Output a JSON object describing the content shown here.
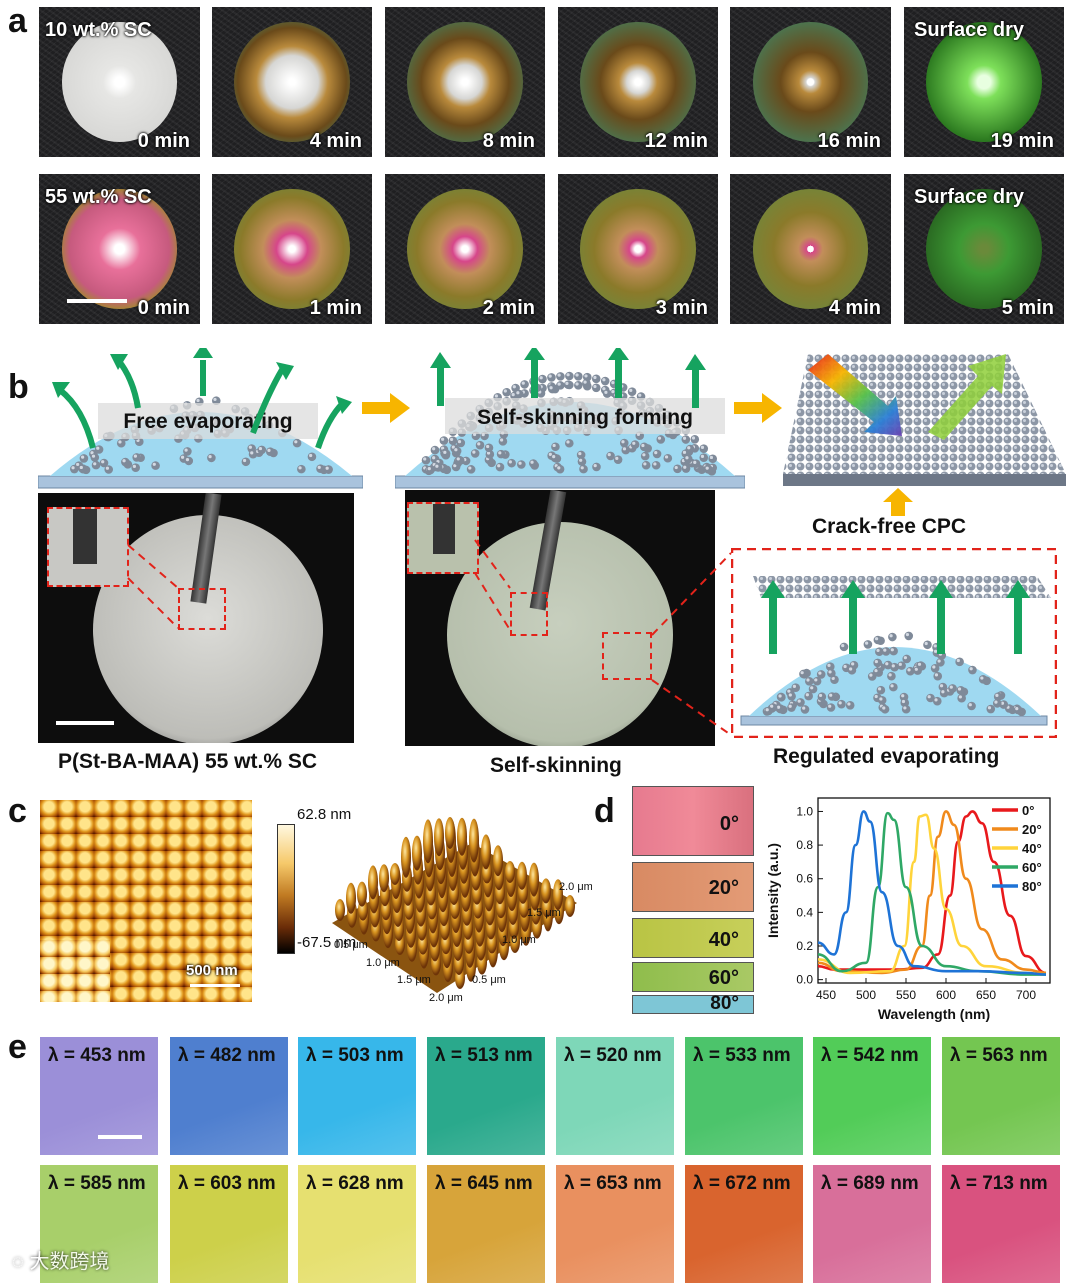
{
  "panels": {
    "a": "a",
    "b": "b",
    "c": "c",
    "d": "d",
    "e": "e"
  },
  "panel_a": {
    "row1_label": "10 wt.% SC",
    "row2_label": "55 wt.% SC",
    "surface_dry": "Surface dry",
    "row1_times": [
      "0 min",
      "4 min",
      "8 min",
      "12 min",
      "16 min",
      "19 min"
    ],
    "row2_times": [
      "0 min",
      "1 min",
      "2 min",
      "3 min",
      "4 min",
      "5 min"
    ]
  },
  "panel_b": {
    "free_evaporating": "Free evaporating",
    "self_skinning_forming": "Self-skinning forming",
    "crack_free_cpc": "Crack-free CPC",
    "caption_left": "P(St-BA-MAA) 55 wt.% SC",
    "caption_mid": "Self-skinning",
    "caption_right": "Regulated evaporating"
  },
  "panel_c": {
    "scale_max": "62.8 nm",
    "scale_min": "-67.5 nm",
    "scalebar": "500 nm",
    "axis_x_ticks": [
      "0.5 μm",
      "1.0 μm",
      "1.5 μm",
      "2.0 μm"
    ],
    "axis_y_ticks": [
      "0.5 μm",
      "1.0 μm",
      "1.5 μm",
      "2.0 μm"
    ]
  },
  "panel_d": {
    "angles": [
      "0°",
      "20°",
      "40°",
      "60°",
      "80°"
    ]
  },
  "panel_e": {
    "row1": [
      "λ = 453 nm",
      "λ = 482 nm",
      "λ = 503 nm",
      "λ = 513 nm",
      "λ = 520 nm",
      "λ = 533 nm",
      "λ = 542 nm",
      "λ = 563 nm"
    ],
    "row2": [
      "λ = 585 nm",
      "λ = 603 nm",
      "λ = 628 nm",
      "λ = 645 nm",
      "λ = 653 nm",
      "λ = 672 nm",
      "λ = 689 nm",
      "λ = 713 nm"
    ],
    "row1_colors": [
      "#9b8fd8",
      "#4f7fcf",
      "#37b7ea",
      "#2aa98c",
      "#7ed7b8",
      "#4cc46b",
      "#52cc58",
      "#74c651"
    ],
    "row2_colors": [
      "#a8cf6a",
      "#cdd04a",
      "#e6e070",
      "#d7a43a",
      "#e9905f",
      "#d9642e",
      "#d86f9a",
      "#d9527f"
    ]
  },
  "watermark": "大数跨境",
  "chart_data": {
    "type": "line",
    "xlabel": "Wavelength (nm)",
    "ylabel": "Intensity (a.u.)",
    "xlim": [
      440,
      730
    ],
    "ylim": [
      -0.02,
      1.08
    ],
    "x_ticks": [
      "450",
      "500",
      "550",
      "600",
      "650",
      "700"
    ],
    "y_ticks": [
      "0.0",
      "0.2",
      "0.4",
      "0.6",
      "0.8",
      "1.0"
    ],
    "legend_position": "top-right",
    "series": [
      {
        "name": "0°",
        "color": "#e8191c",
        "x": [
          440,
          460,
          500,
          540,
          570,
          590,
          605,
          615,
          625,
          633,
          645,
          660,
          680,
          700,
          725
        ],
        "y": [
          0.08,
          0.06,
          0.06,
          0.06,
          0.07,
          0.15,
          0.5,
          0.82,
          0.97,
          1.0,
          0.93,
          0.7,
          0.38,
          0.14,
          0.04
        ]
      },
      {
        "name": "20°",
        "color": "#f08a1c",
        "x": [
          440,
          470,
          520,
          550,
          570,
          580,
          590,
          600,
          610,
          625,
          645,
          670,
          700,
          725
        ],
        "y": [
          0.1,
          0.05,
          0.04,
          0.06,
          0.2,
          0.5,
          0.85,
          1.0,
          0.92,
          0.6,
          0.3,
          0.12,
          0.06,
          0.04
        ]
      },
      {
        "name": "40°",
        "color": "#ffd43b",
        "x": [
          440,
          480,
          530,
          548,
          560,
          567,
          575,
          585,
          600,
          620,
          650,
          700,
          725
        ],
        "y": [
          0.12,
          0.04,
          0.05,
          0.2,
          0.7,
          0.97,
          0.98,
          0.78,
          0.42,
          0.2,
          0.08,
          0.04,
          0.03
        ]
      },
      {
        "name": "60°",
        "color": "#2fa866",
        "x": [
          440,
          470,
          500,
          515,
          527,
          535,
          550,
          570,
          600,
          640,
          700,
          725
        ],
        "y": [
          0.15,
          0.05,
          0.1,
          0.55,
          0.99,
          0.95,
          0.55,
          0.2,
          0.08,
          0.05,
          0.03,
          0.03
        ]
      },
      {
        "name": "80°",
        "color": "#1e73d6",
        "x": [
          440,
          460,
          475,
          487,
          497,
          505,
          520,
          540,
          560,
          600,
          640,
          700,
          725
        ],
        "y": [
          0.22,
          0.15,
          0.4,
          0.8,
          1.0,
          0.94,
          0.52,
          0.2,
          0.08,
          0.05,
          0.05,
          0.04,
          0.03
        ]
      }
    ]
  }
}
